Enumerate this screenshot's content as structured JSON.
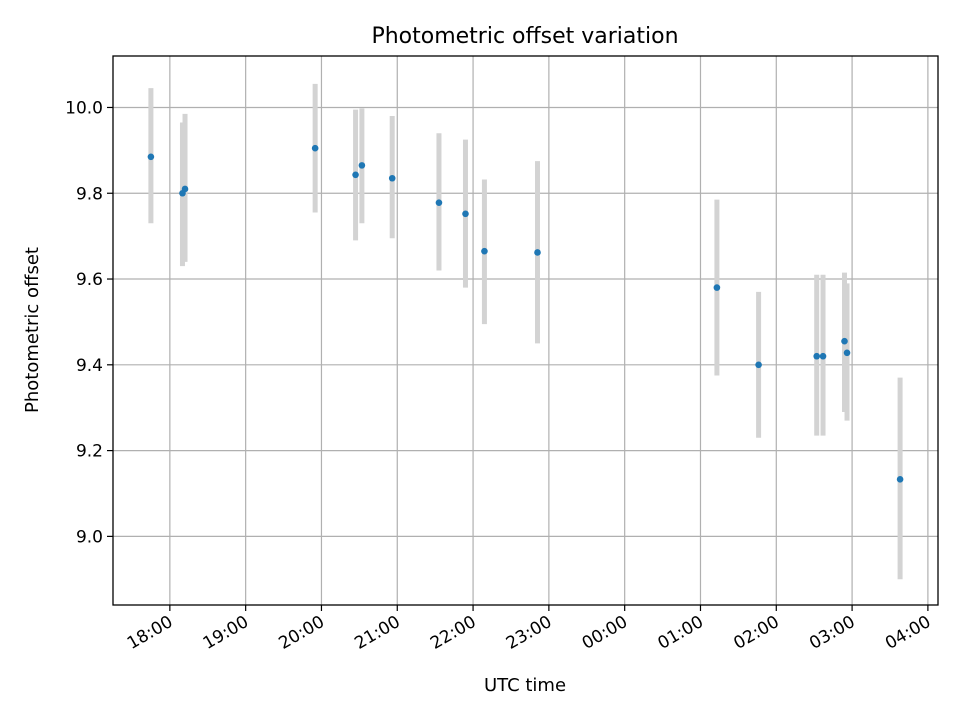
{
  "chart_data": {
    "type": "scatter",
    "title": "Photometric offset variation",
    "xlabel": "UTC time",
    "ylabel": "Photometric offset",
    "xlim": [
      "17:15",
      "04:08"
    ],
    "ylim": [
      8.84,
      10.12
    ],
    "x_ticks": [
      "18:00",
      "19:00",
      "20:00",
      "21:00",
      "22:00",
      "23:00",
      "00:00",
      "01:00",
      "02:00",
      "03:00",
      "04:00"
    ],
    "y_ticks": [
      9.0,
      9.2,
      9.4,
      9.6,
      9.8,
      10.0
    ],
    "grid": true,
    "point_color": "#1f77b4",
    "errorbar_color": "#d3d3d3",
    "points": [
      {
        "x": "17:45",
        "y": 9.885,
        "ylow": 9.73,
        "yhigh": 10.045
      },
      {
        "x": "18:10",
        "y": 9.8,
        "ylow": 9.63,
        "yhigh": 9.965
      },
      {
        "x": "18:12",
        "y": 9.81,
        "ylow": 9.64,
        "yhigh": 9.985
      },
      {
        "x": "19:55",
        "y": 9.905,
        "ylow": 9.755,
        "yhigh": 10.055
      },
      {
        "x": "20:27",
        "y": 9.843,
        "ylow": 9.69,
        "yhigh": 9.995
      },
      {
        "x": "20:32",
        "y": 9.865,
        "ylow": 9.73,
        "yhigh": 9.998
      },
      {
        "x": "20:56",
        "y": 9.835,
        "ylow": 9.695,
        "yhigh": 9.98
      },
      {
        "x": "21:33",
        "y": 9.778,
        "ylow": 9.62,
        "yhigh": 9.94
      },
      {
        "x": "21:54",
        "y": 9.752,
        "ylow": 9.58,
        "yhigh": 9.925
      },
      {
        "x": "22:09",
        "y": 9.665,
        "ylow": 9.495,
        "yhigh": 9.832
      },
      {
        "x": "22:51",
        "y": 9.662,
        "ylow": 9.45,
        "yhigh": 9.875
      },
      {
        "x": "01:13",
        "y": 9.58,
        "ylow": 9.375,
        "yhigh": 9.785
      },
      {
        "x": "01:46",
        "y": 9.4,
        "ylow": 9.23,
        "yhigh": 9.57
      },
      {
        "x": "02:32",
        "y": 9.42,
        "ylow": 9.235,
        "yhigh": 9.61
      },
      {
        "x": "02:37",
        "y": 9.42,
        "ylow": 9.235,
        "yhigh": 9.61
      },
      {
        "x": "02:54",
        "y": 9.455,
        "ylow": 9.29,
        "yhigh": 9.615
      },
      {
        "x": "02:56",
        "y": 9.428,
        "ylow": 9.27,
        "yhigh": 9.59
      },
      {
        "x": "03:38",
        "y": 9.133,
        "ylow": 8.9,
        "yhigh": 9.37
      }
    ]
  }
}
